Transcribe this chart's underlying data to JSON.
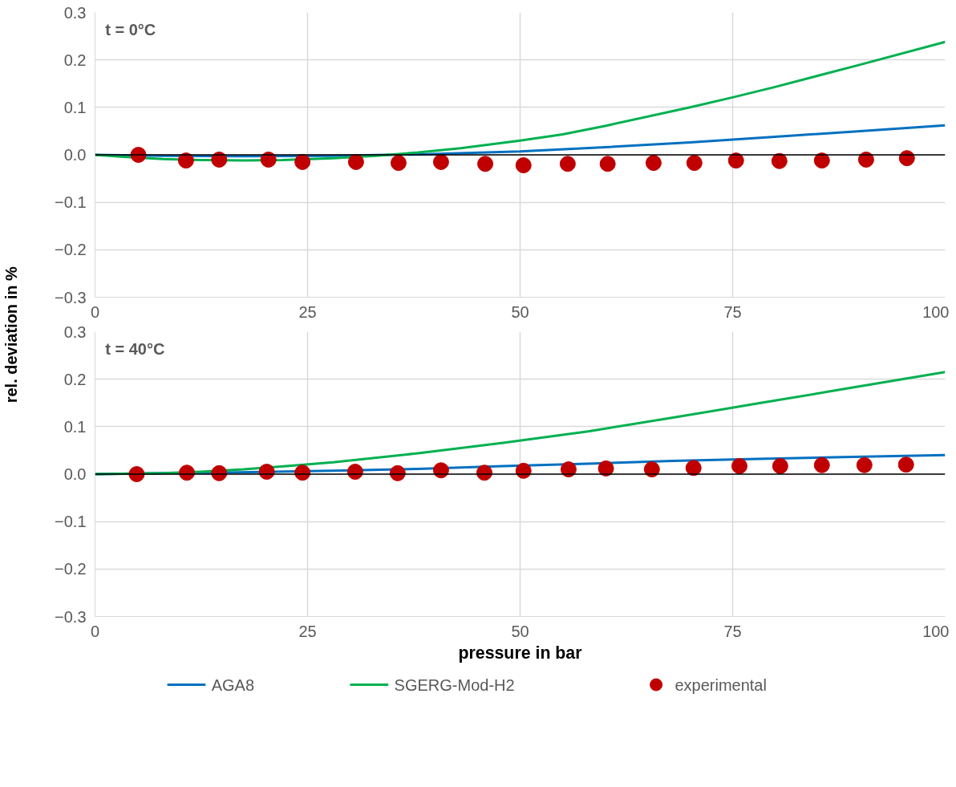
{
  "chart_data": [
    {
      "type": "line",
      "ylabel": "rel. deviation  in %",
      "annotations": [
        "t = 0°C"
      ],
      "legend": "bottom",
      "xlim": [
        0,
        100
      ],
      "xticks": [
        0,
        25,
        50,
        75,
        100
      ],
      "ylim": [
        -0.3,
        0.3
      ],
      "yticks": [
        -0.3,
        -0.2,
        -0.1,
        {
          "value": 0,
          "label": "0.0"
        },
        0.1,
        0.2,
        0.3
      ],
      "grid": true,
      "ref_lines": [
        {
          "axis": "y",
          "value": 0,
          "color": "#000000"
        }
      ],
      "series": [
        {
          "name": "AGA8",
          "color": "#0070c0",
          "x": [
            0,
            8,
            17,
            28,
            38,
            50,
            60,
            70,
            80,
            90,
            100
          ],
          "values": [
            0,
            -0.002,
            -0.003,
            -0.002,
            0.001,
            0.007,
            0.016,
            0.026,
            0.038,
            0.05,
            0.062
          ]
        },
        {
          "name": "SGERG-Mod-H2",
          "color": "#00b050",
          "x": [
            0,
            3,
            8,
            12.5,
            17.5,
            22,
            28,
            33,
            38,
            43,
            50,
            55,
            60,
            70,
            75,
            80,
            90,
            100
          ],
          "values": [
            0,
            -0.004,
            -0.009,
            -0.011,
            -0.012,
            -0.011,
            -0.007,
            -0.002,
            0.005,
            0.014,
            0.03,
            0.043,
            0.061,
            0.1,
            0.121,
            0.143,
            0.19,
            0.238
          ]
        },
        {
          "name": "experimental",
          "type": "scatter",
          "marker": "circle",
          "color": "#c00000",
          "x": [
            5.1,
            10.7,
            14.6,
            20.4,
            24.4,
            30.7,
            35.7,
            40.7,
            45.9,
            50.4,
            55.6,
            60.3,
            65.7,
            70.5,
            75.4,
            80.5,
            85.5,
            90.7,
            95.5
          ],
          "values": [
            0,
            -0.012,
            -0.01,
            -0.01,
            -0.015,
            -0.015,
            -0.017,
            -0.015,
            -0.019,
            -0.022,
            -0.019,
            -0.019,
            -0.017,
            -0.017,
            -0.012,
            -0.013,
            -0.012,
            -0.01,
            -0.007
          ]
        }
      ]
    },
    {
      "type": "line",
      "xlabel": "pressure in bar",
      "annotations": [
        "t = 40°C"
      ],
      "legend": "bottom",
      "xlim": [
        0,
        100
      ],
      "xticks": [
        0,
        25,
        50,
        75,
        100
      ],
      "ylim": [
        -0.3,
        0.3
      ],
      "yticks": [
        -0.3,
        -0.2,
        -0.1,
        {
          "value": 0,
          "label": "0.0"
        },
        0.1,
        0.2,
        0.3
      ],
      "grid": true,
      "ref_lines": [
        {
          "axis": "y",
          "value": 0,
          "color": "#000000"
        }
      ],
      "series": [
        {
          "color": "#0070c0",
          "x": [
            0,
            8,
            17,
            28,
            38,
            48,
            58,
            68,
            78,
            88,
            100
          ],
          "values": [
            0,
            0.002,
            0.004,
            0.007,
            0.011,
            0.017,
            0.022,
            0.028,
            0.032,
            0.036,
            0.04
          ]
        },
        {
          "color": "#00b050",
          "x": [
            0,
            8,
            12.5,
            17.5,
            22.5,
            28,
            38,
            48,
            58,
            68,
            78,
            88,
            100
          ],
          "values": [
            0,
            0.002,
            0.005,
            0.01,
            0.017,
            0.025,
            0.044,
            0.066,
            0.09,
            0.119,
            0.149,
            0.179,
            0.215
          ]
        },
        {
          "type": "scatter",
          "marker": "circle",
          "color": "#c00000",
          "x": [
            4.9,
            10.8,
            14.6,
            20.2,
            24.4,
            30.6,
            35.6,
            40.7,
            45.8,
            50.4,
            55.7,
            60.1,
            65.5,
            70.4,
            75.8,
            80.6,
            85.5,
            90.5,
            95.4
          ],
          "values": [
            0,
            0.003,
            0.002,
            0.005,
            0.003,
            0.005,
            0.002,
            0.008,
            0.003,
            0.007,
            0.01,
            0.012,
            0.01,
            0.013,
            0.017,
            0.017,
            0.019,
            0.019,
            0.02
          ]
        }
      ]
    }
  ]
}
